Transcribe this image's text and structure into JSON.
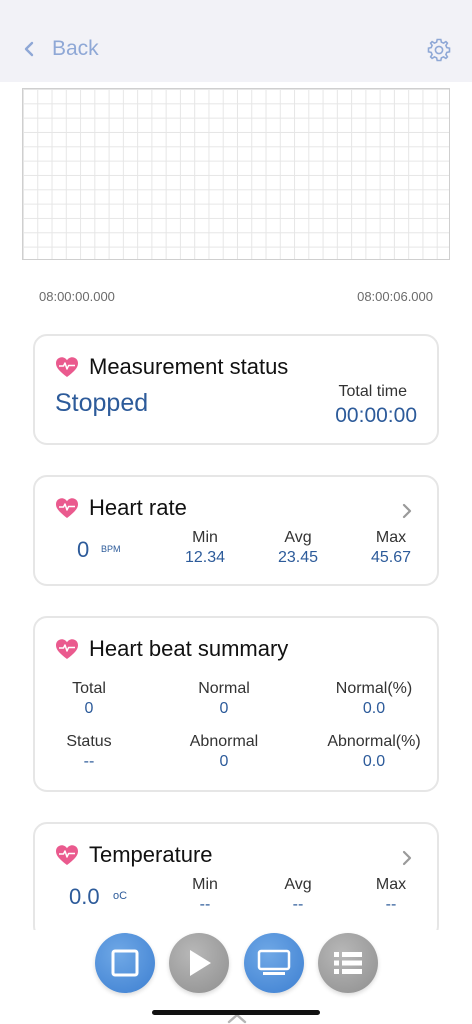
{
  "nav": {
    "back_label": "Back"
  },
  "chart": {
    "time_start": "08:00:00.000",
    "time_end": "08:00:06.000"
  },
  "measurement": {
    "title": "Measurement status",
    "status": "Stopped",
    "total_time_label": "Total time",
    "total_time_value": "00:00:00"
  },
  "heart_rate": {
    "title": "Heart rate",
    "value": "0",
    "unit": "BPM",
    "min_label": "Min",
    "min_value": "12.34",
    "avg_label": "Avg",
    "avg_value": "23.45",
    "max_label": "Max",
    "max_value": "45.67"
  },
  "beat_summary": {
    "title": "Heart beat summary",
    "total_label": "Total",
    "total_value": "0",
    "normal_label": "Normal",
    "normal_value": "0",
    "normal_pct_label": "Normal(%)",
    "normal_pct_value": "0.0",
    "status_label": "Status",
    "status_value": "--",
    "abnormal_label": "Abnormal",
    "abnormal_value": "0",
    "abnormal_pct_label": "Abnormal(%)",
    "abnormal_pct_value": "0.0"
  },
  "temperature": {
    "title": "Temperature",
    "value": "0.0",
    "unit": "oC",
    "min_label": "Min",
    "min_value": "--",
    "avg_label": "Avg",
    "avg_value": "--",
    "max_label": "Max",
    "max_value": "--"
  },
  "icons": {
    "back": "chevron-left-icon",
    "settings": "gear-icon",
    "heart": "heart-pulse-icon",
    "stop": "stop-icon",
    "play": "play-icon",
    "monitor": "monitor-icon",
    "list": "list-icon"
  },
  "colors": {
    "accent": "#3d7fd1",
    "value_blue": "#2d5b9a",
    "heart_pink": "#ea5a8e",
    "nav_bg": "#f2f2f7"
  }
}
